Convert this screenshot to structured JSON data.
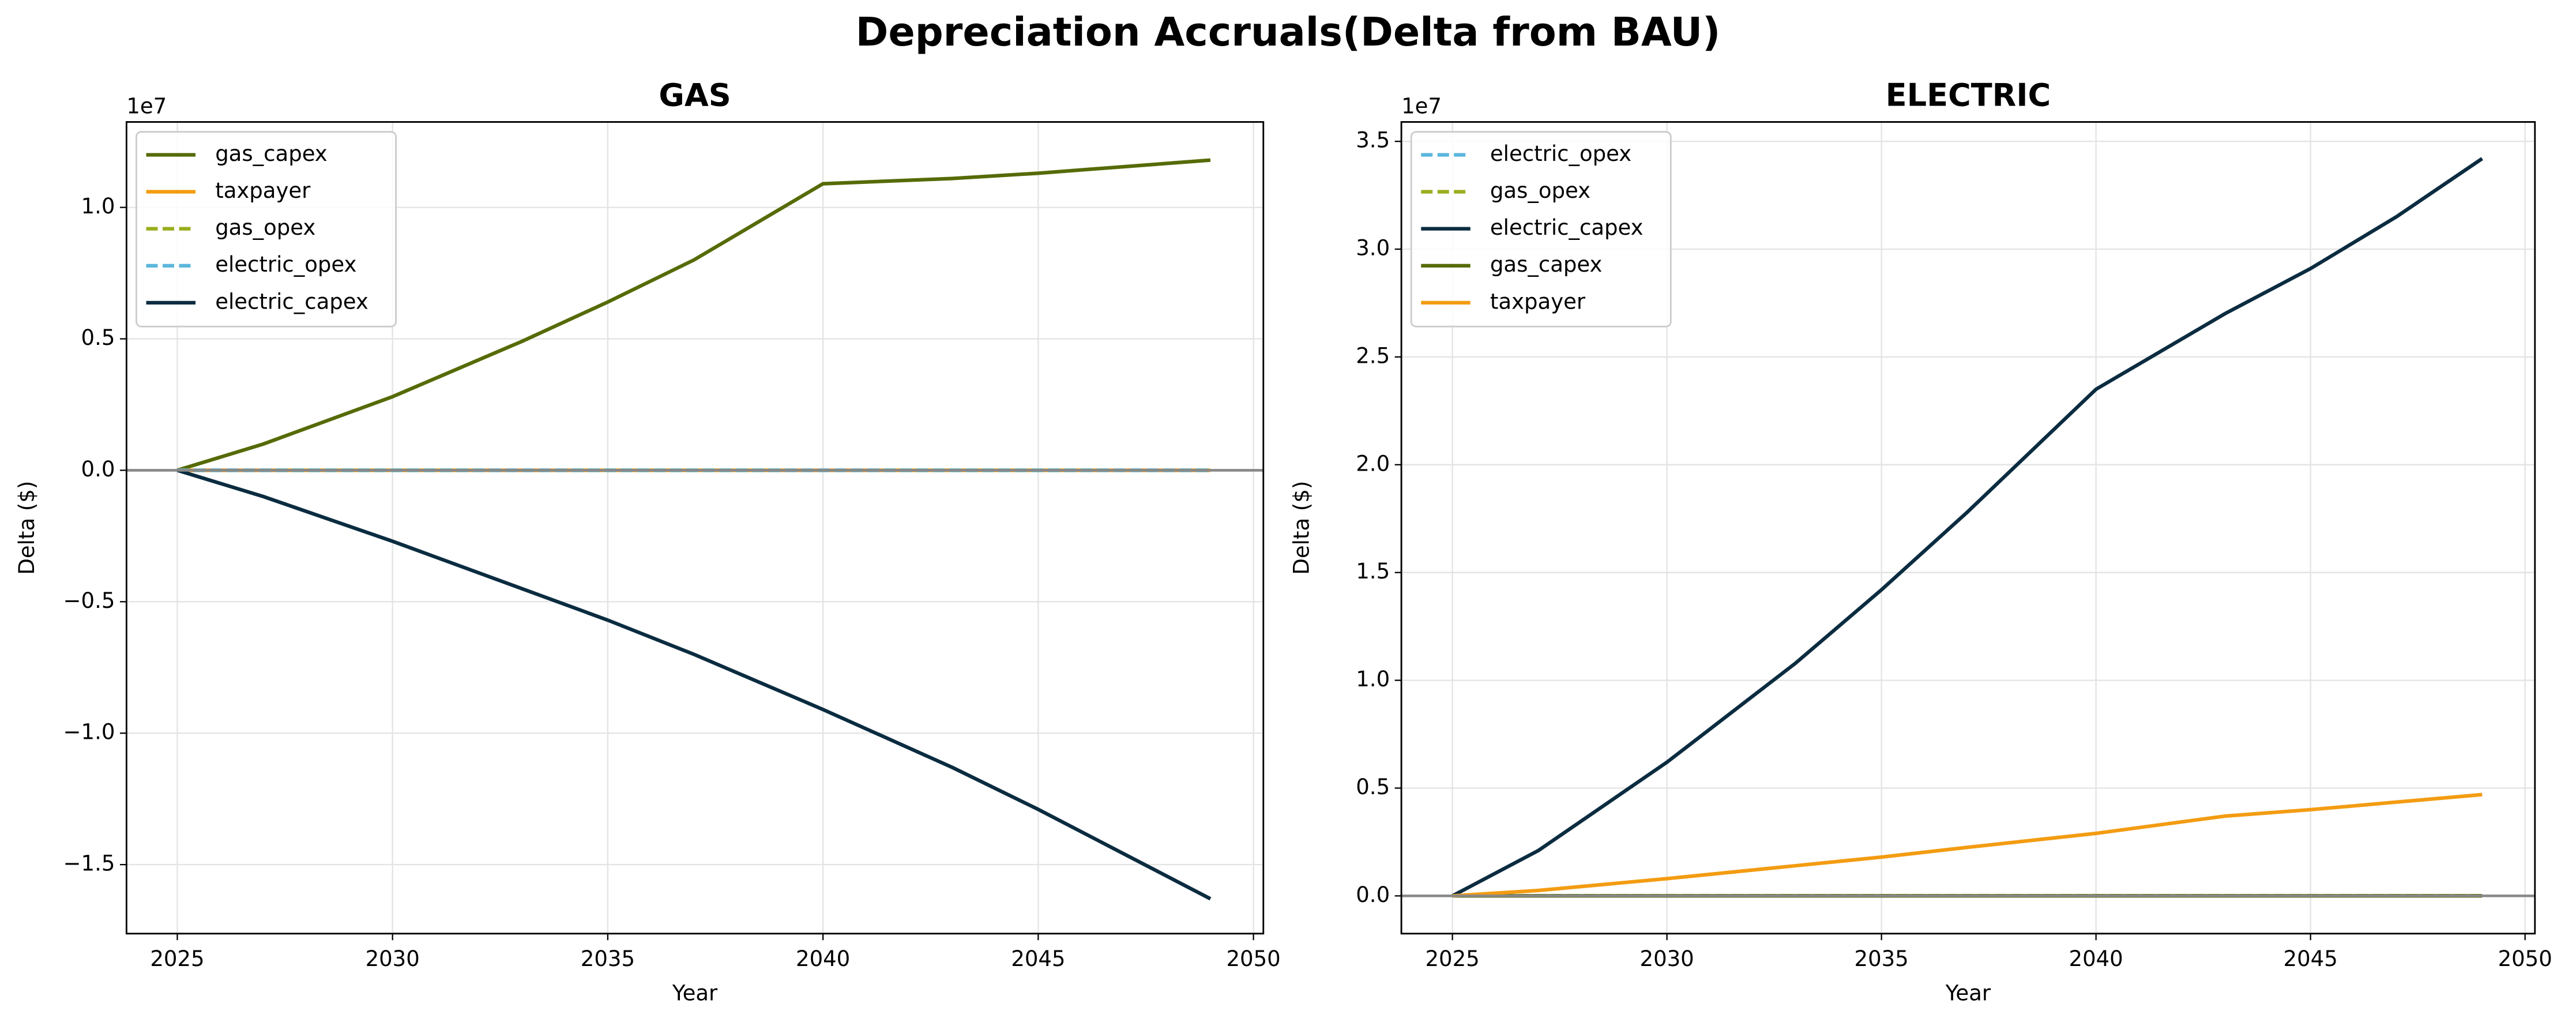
{
  "title": "Depreciation Accruals(Delta from BAU)",
  "chart_data": [
    {
      "type": "line",
      "title": "GAS",
      "xlabel": "Year",
      "ylabel": "Delta ($)",
      "offset_text": "1e7",
      "x": [
        2025,
        2027,
        2030,
        2033,
        2035,
        2037,
        2040,
        2043,
        2045,
        2047,
        2049
      ],
      "series": [
        {
          "name": "gas_capex",
          "color": "#556b06",
          "linestyle": "solid",
          "values": [
            0,
            0.1,
            0.28,
            0.49,
            0.64,
            0.8,
            1.09,
            1.11,
            1.13,
            1.155,
            1.18
          ]
        },
        {
          "name": "taxpayer",
          "color": "#f39c12",
          "linestyle": "solid",
          "values": [
            0,
            0,
            0,
            0,
            0,
            0,
            0,
            0,
            0,
            0,
            0
          ]
        },
        {
          "name": "gas_opex",
          "color": "#9aad1c",
          "linestyle": "dashed",
          "values": [
            0,
            0,
            0,
            0,
            0,
            0,
            0,
            0,
            0,
            0,
            0
          ]
        },
        {
          "name": "electric_opex",
          "color": "#5bb6dc",
          "linestyle": "dashed",
          "values": [
            0,
            0,
            0,
            0,
            0,
            0,
            0,
            0,
            0,
            0,
            0
          ]
        },
        {
          "name": "electric_capex",
          "color": "#0b2c40",
          "linestyle": "solid",
          "values": [
            0,
            -0.1,
            -0.27,
            -0.45,
            -0.57,
            -0.7,
            -0.91,
            -1.13,
            -1.29,
            -1.46,
            -1.63
          ]
        }
      ],
      "xlim": [
        2023.82,
        2050.23
      ],
      "xticks": [
        2025,
        2030,
        2035,
        2040,
        2045,
        2050
      ],
      "ylim": [
        -1.7625,
        1.325
      ],
      "yticks": [
        {
          "value": -1.5,
          "label": "−1.5"
        },
        {
          "value": -1,
          "label": "−1.0"
        },
        {
          "value": -0.5,
          "label": "−0.5"
        },
        {
          "value": 0,
          "label": "0.0"
        },
        {
          "value": 0.5,
          "label": "0.5"
        },
        {
          "value": 1,
          "label": "1.0"
        }
      ],
      "hline": 0,
      "grid": true,
      "legend": "upper left"
    },
    {
      "type": "line",
      "title": "ELECTRIC",
      "xlabel": "Year",
      "ylabel": "Delta ($)",
      "offset_text": "1e7",
      "x": [
        2025,
        2027,
        2030,
        2033,
        2035,
        2037,
        2040,
        2043,
        2045,
        2047,
        2049
      ],
      "series": [
        {
          "name": "electric_opex",
          "color": "#5bb6dc",
          "linestyle": "dashed",
          "values": [
            0,
            0,
            0,
            0,
            0,
            0,
            0,
            0,
            0,
            0,
            0
          ]
        },
        {
          "name": "gas_opex",
          "color": "#9aad1c",
          "linestyle": "dashed",
          "values": [
            0,
            0,
            0,
            0,
            0,
            0,
            0,
            0,
            0,
            0,
            0
          ]
        },
        {
          "name": "electric_capex",
          "color": "#0b2c40",
          "linestyle": "solid",
          "values": [
            0,
            0.21,
            0.62,
            1.08,
            1.42,
            1.78,
            2.35,
            2.7,
            2.91,
            3.15,
            3.42
          ]
        },
        {
          "name": "gas_capex",
          "color": "#556b06",
          "linestyle": "solid",
          "values": [
            0,
            0,
            0,
            0,
            0,
            0,
            0,
            0,
            0,
            0,
            0
          ]
        },
        {
          "name": "taxpayer",
          "color": "#f39c12",
          "linestyle": "solid",
          "values": [
            0,
            0.025,
            0.08,
            0.14,
            0.18,
            0.225,
            0.29,
            0.37,
            0.4,
            0.435,
            0.47
          ]
        }
      ],
      "xlim": [
        2023.81,
        2050.23
      ],
      "xticks": [
        2025,
        2030,
        2035,
        2040,
        2045,
        2050
      ],
      "ylim": [
        -0.175,
        3.59
      ],
      "yticks": [
        {
          "value": 0,
          "label": "0.0"
        },
        {
          "value": 0.5,
          "label": "0.5"
        },
        {
          "value": 1,
          "label": "1.0"
        },
        {
          "value": 1.5,
          "label": "1.5"
        },
        {
          "value": 2,
          "label": "2.0"
        },
        {
          "value": 2.5,
          "label": "2.5"
        },
        {
          "value": 3,
          "label": "3.0"
        },
        {
          "value": 3.5,
          "label": "3.5"
        }
      ],
      "hline": 0,
      "grid": true,
      "legend": "upper left"
    }
  ]
}
